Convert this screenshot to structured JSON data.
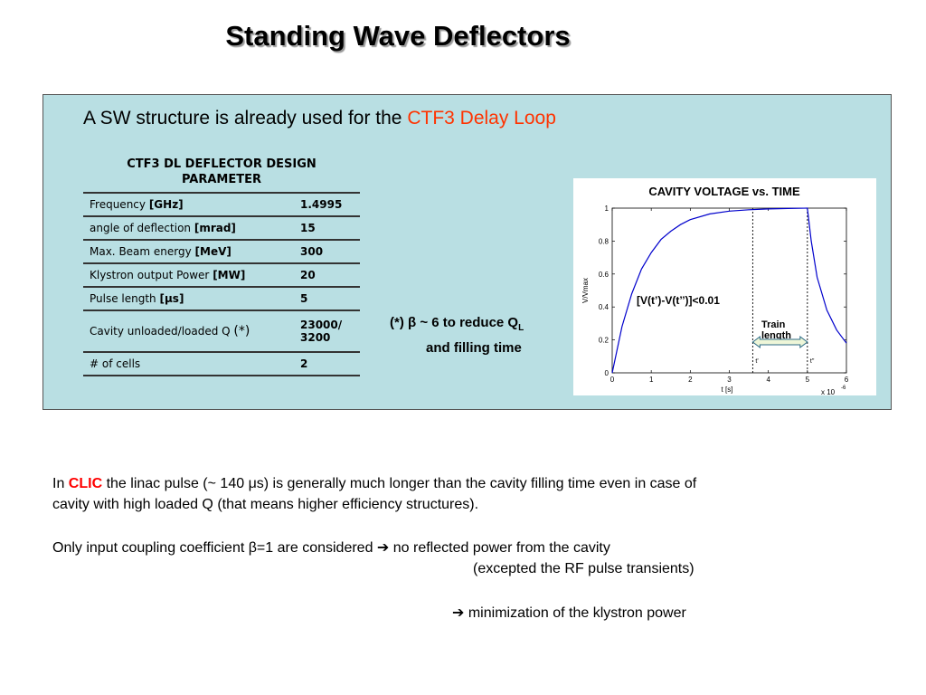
{
  "title": "Standing Wave Deflectors",
  "intro": {
    "before": "A SW structure is already used for the ",
    "highlight": "CTF3 Delay Loop"
  },
  "table": {
    "header_line1": "CTF3 DL DEFLECTOR DESIGN",
    "header_line2": "PARAMETER",
    "rows": [
      {
        "name": "Frequency ",
        "unit": "[GHz]",
        "value": "1.4995"
      },
      {
        "name": "angle of deflection ",
        "unit": "[mrad]",
        "value": "15"
      },
      {
        "name": "Max. Beam energy ",
        "unit": "[MeV]",
        "value": "300"
      },
      {
        "name": "Klystron output Power ",
        "unit": "[MW]",
        "value": "20"
      },
      {
        "name": "Pulse length  ",
        "unit": "[μs]",
        "value": "5"
      },
      {
        "name": "Cavity unloaded/loaded Q ",
        "unit": "(*)",
        "value_line1": "23000/",
        "value_line2": "3200"
      },
      {
        "name": "# of cells",
        "unit": "",
        "value": "2"
      }
    ]
  },
  "note": {
    "line1_prefix": "(*)  β ~ 6 to reduce Q",
    "line1_sub": "L",
    "line2": "and filling time"
  },
  "chart_data": {
    "type": "line",
    "title": "CAVITY VOLTAGE vs. TIME",
    "xlabel": "t [s]",
    "ylabel": "V/Vmax",
    "x_multiplier_base": "x 10",
    "x_multiplier_exp": "-6",
    "xlim": [
      0,
      6
    ],
    "ylim": [
      0,
      1
    ],
    "xticks": [
      0,
      1,
      2,
      3,
      4,
      5,
      6
    ],
    "yticks": [
      0,
      0.2,
      0.4,
      0.6,
      0.8,
      1
    ],
    "ytick_labels": [
      "0",
      "0.2",
      "0.4",
      "0.6",
      "0.8",
      "1"
    ],
    "series": [
      {
        "x": [
          0,
          0.25,
          0.5,
          0.75,
          1.0,
          1.25,
          1.5,
          1.75,
          2.0,
          2.5,
          3.0,
          3.5,
          4.0,
          4.5,
          5.0,
          5.1,
          5.25,
          5.5,
          5.75,
          6.0
        ],
        "y": [
          0,
          0.28,
          0.48,
          0.63,
          0.73,
          0.81,
          0.86,
          0.9,
          0.93,
          0.965,
          0.982,
          0.99,
          0.995,
          0.998,
          1.0,
          0.8,
          0.58,
          0.38,
          0.26,
          0.18
        ]
      }
    ],
    "markers": [
      {
        "x": 3.6,
        "label": "t'"
      },
      {
        "x": 5.0,
        "label": "t''"
      }
    ],
    "annotation": "[V(t’)-V(t’’)]<0.01",
    "arrow_label_line1": "Train",
    "arrow_label_line2": "length",
    "line_color": "#0000cc"
  },
  "paragraphs": {
    "p1_before": "In ",
    "p1_clic": "CLIC",
    "p1_line1_rest": " the linac pulse (~ 140 μs) is generally much longer than the cavity filling time even in case of",
    "p1_line2": "cavity with high loaded Q (that means higher efficiency structures).",
    "p2_line1": "Only input coupling coefficient β=1 are considered ➔ no reflected power from the cavity",
    "p2_line2": "(excepted the RF pulse transients)",
    "p3": "➔ minimization of the klystron power"
  }
}
